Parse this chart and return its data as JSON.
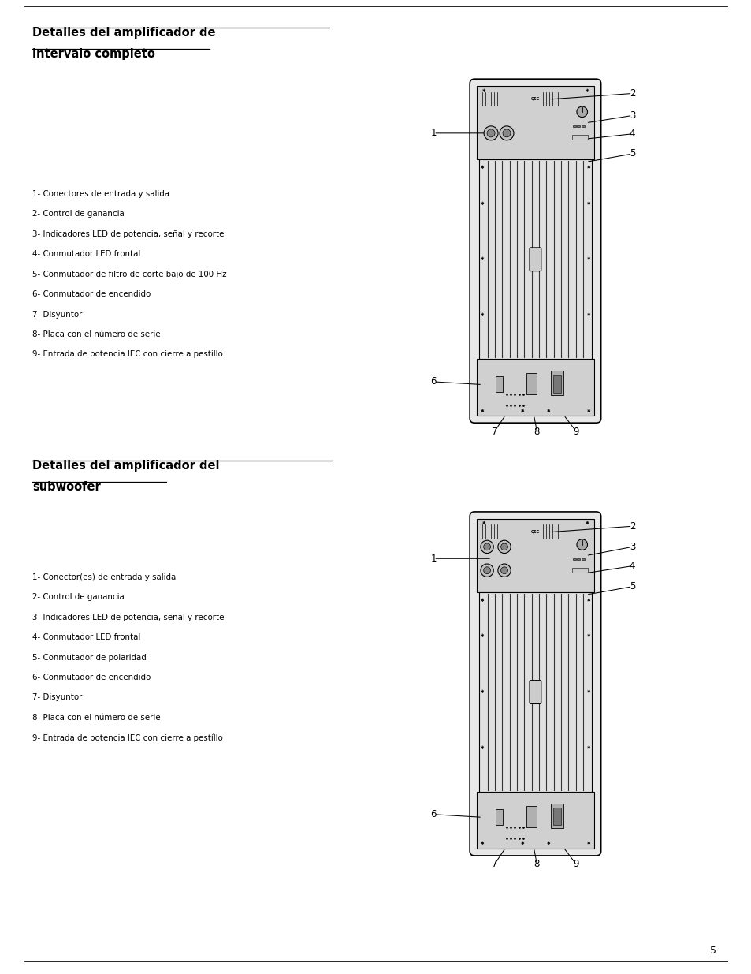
{
  "title1_line1": "Detalles del amplificador de",
  "title1_line2": "intervalo completo",
  "title2_line1": "Detalles del amplificador del",
  "title2_line2": "subwoofer",
  "labels1": [
    "1- Conectores de entrada y salida",
    "2- Control de ganancia",
    "3- Indicadores LED de potencia, señal y recorte",
    "4- Conmutador LED frontal",
    "5- Conmutador de filtro de corte bajo de 100 Hz",
    "6- Conmutador de encendido",
    "7- Disyuntor",
    "8- Placa con el número de serie",
    "9- Entrada de potencia IEC con cierre a pestillo"
  ],
  "labels2": [
    "1- Conector(es) de entrada y salida",
    "2- Control de ganancia",
    "3- Indicadores LED de potencia, señal y recorte",
    "4- Conmutador LED frontal",
    "5- Conmutador de polaridad",
    "6- Conmutador de encendido",
    "7- Disyuntor",
    "8- Placa con el número de serie",
    "9- Entrada de potencia IEC con cierre a pestíllo"
  ],
  "page_number": "5",
  "bg_color": "#ffffff",
  "text_color": "#000000",
  "line_color": "#000000"
}
